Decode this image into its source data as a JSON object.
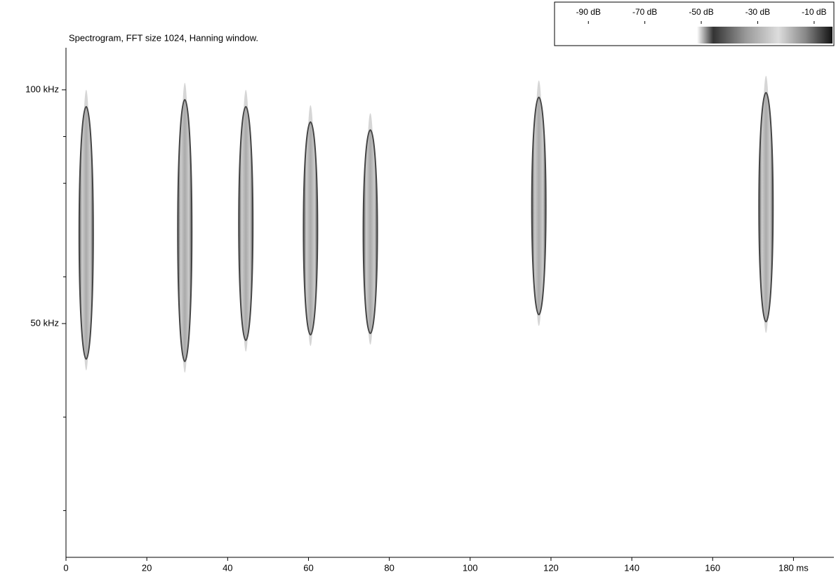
{
  "chart_data": {
    "type": "spectrogram",
    "title": "Spectrogram, FFT size 1024, Hanning window.",
    "x": [
      5.0,
      29.4,
      44.5,
      60.5,
      75.3,
      117.0,
      173.2
    ],
    "low": [
      40,
      39.5,
      44,
      45.2,
      45.5,
      49.5,
      48
    ],
    "high": [
      100,
      101.5,
      100,
      96.7,
      95,
      102,
      103
    ],
    "xlim": [
      0,
      190
    ],
    "xticks": [
      0,
      20,
      40,
      60,
      80,
      100,
      120,
      140,
      160,
      {
        "value": 180,
        "label": "180 ms"
      }
    ],
    "ylim": [
      0,
      109
    ],
    "yticks": [
      {
        "value": 50,
        "label": "50 kHz"
      },
      {
        "value": 100,
        "label": "100 kHz"
      }
    ],
    "yminorticks": [
      10,
      30,
      60,
      80,
      90
    ],
    "colorbar": {
      "lim": [
        -102,
        -3
      ],
      "ticks": [
        {
          "value": -90,
          "label": "-90 dB"
        },
        {
          "value": -70,
          "label": "-70 dB"
        },
        {
          "value": -50,
          "label": "-50 dB"
        },
        {
          "value": -30,
          "label": "-30 dB"
        },
        {
          "value": -10,
          "label": "-10 dB"
        }
      ]
    }
  }
}
